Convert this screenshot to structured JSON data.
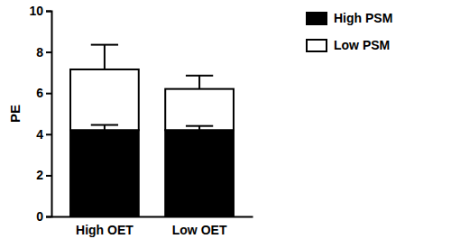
{
  "chart_data": {
    "type": "bar",
    "stacked": true,
    "y_label": "PE",
    "categories": [
      "High OET",
      "Low OET"
    ],
    "series": [
      {
        "name": "High PSM",
        "color": "#000000",
        "values": [
          4.2,
          4.2
        ],
        "errors": [
          0.25,
          0.2
        ]
      },
      {
        "name": "Low PSM",
        "color": "#ffffff",
        "values": [
          2.95,
          2.0
        ],
        "errors": [
          1.2,
          0.65
        ]
      }
    ],
    "ylim": [
      0,
      10
    ],
    "yticks": [
      0,
      2,
      4,
      6,
      8,
      10
    ],
    "legend": "top-right"
  }
}
